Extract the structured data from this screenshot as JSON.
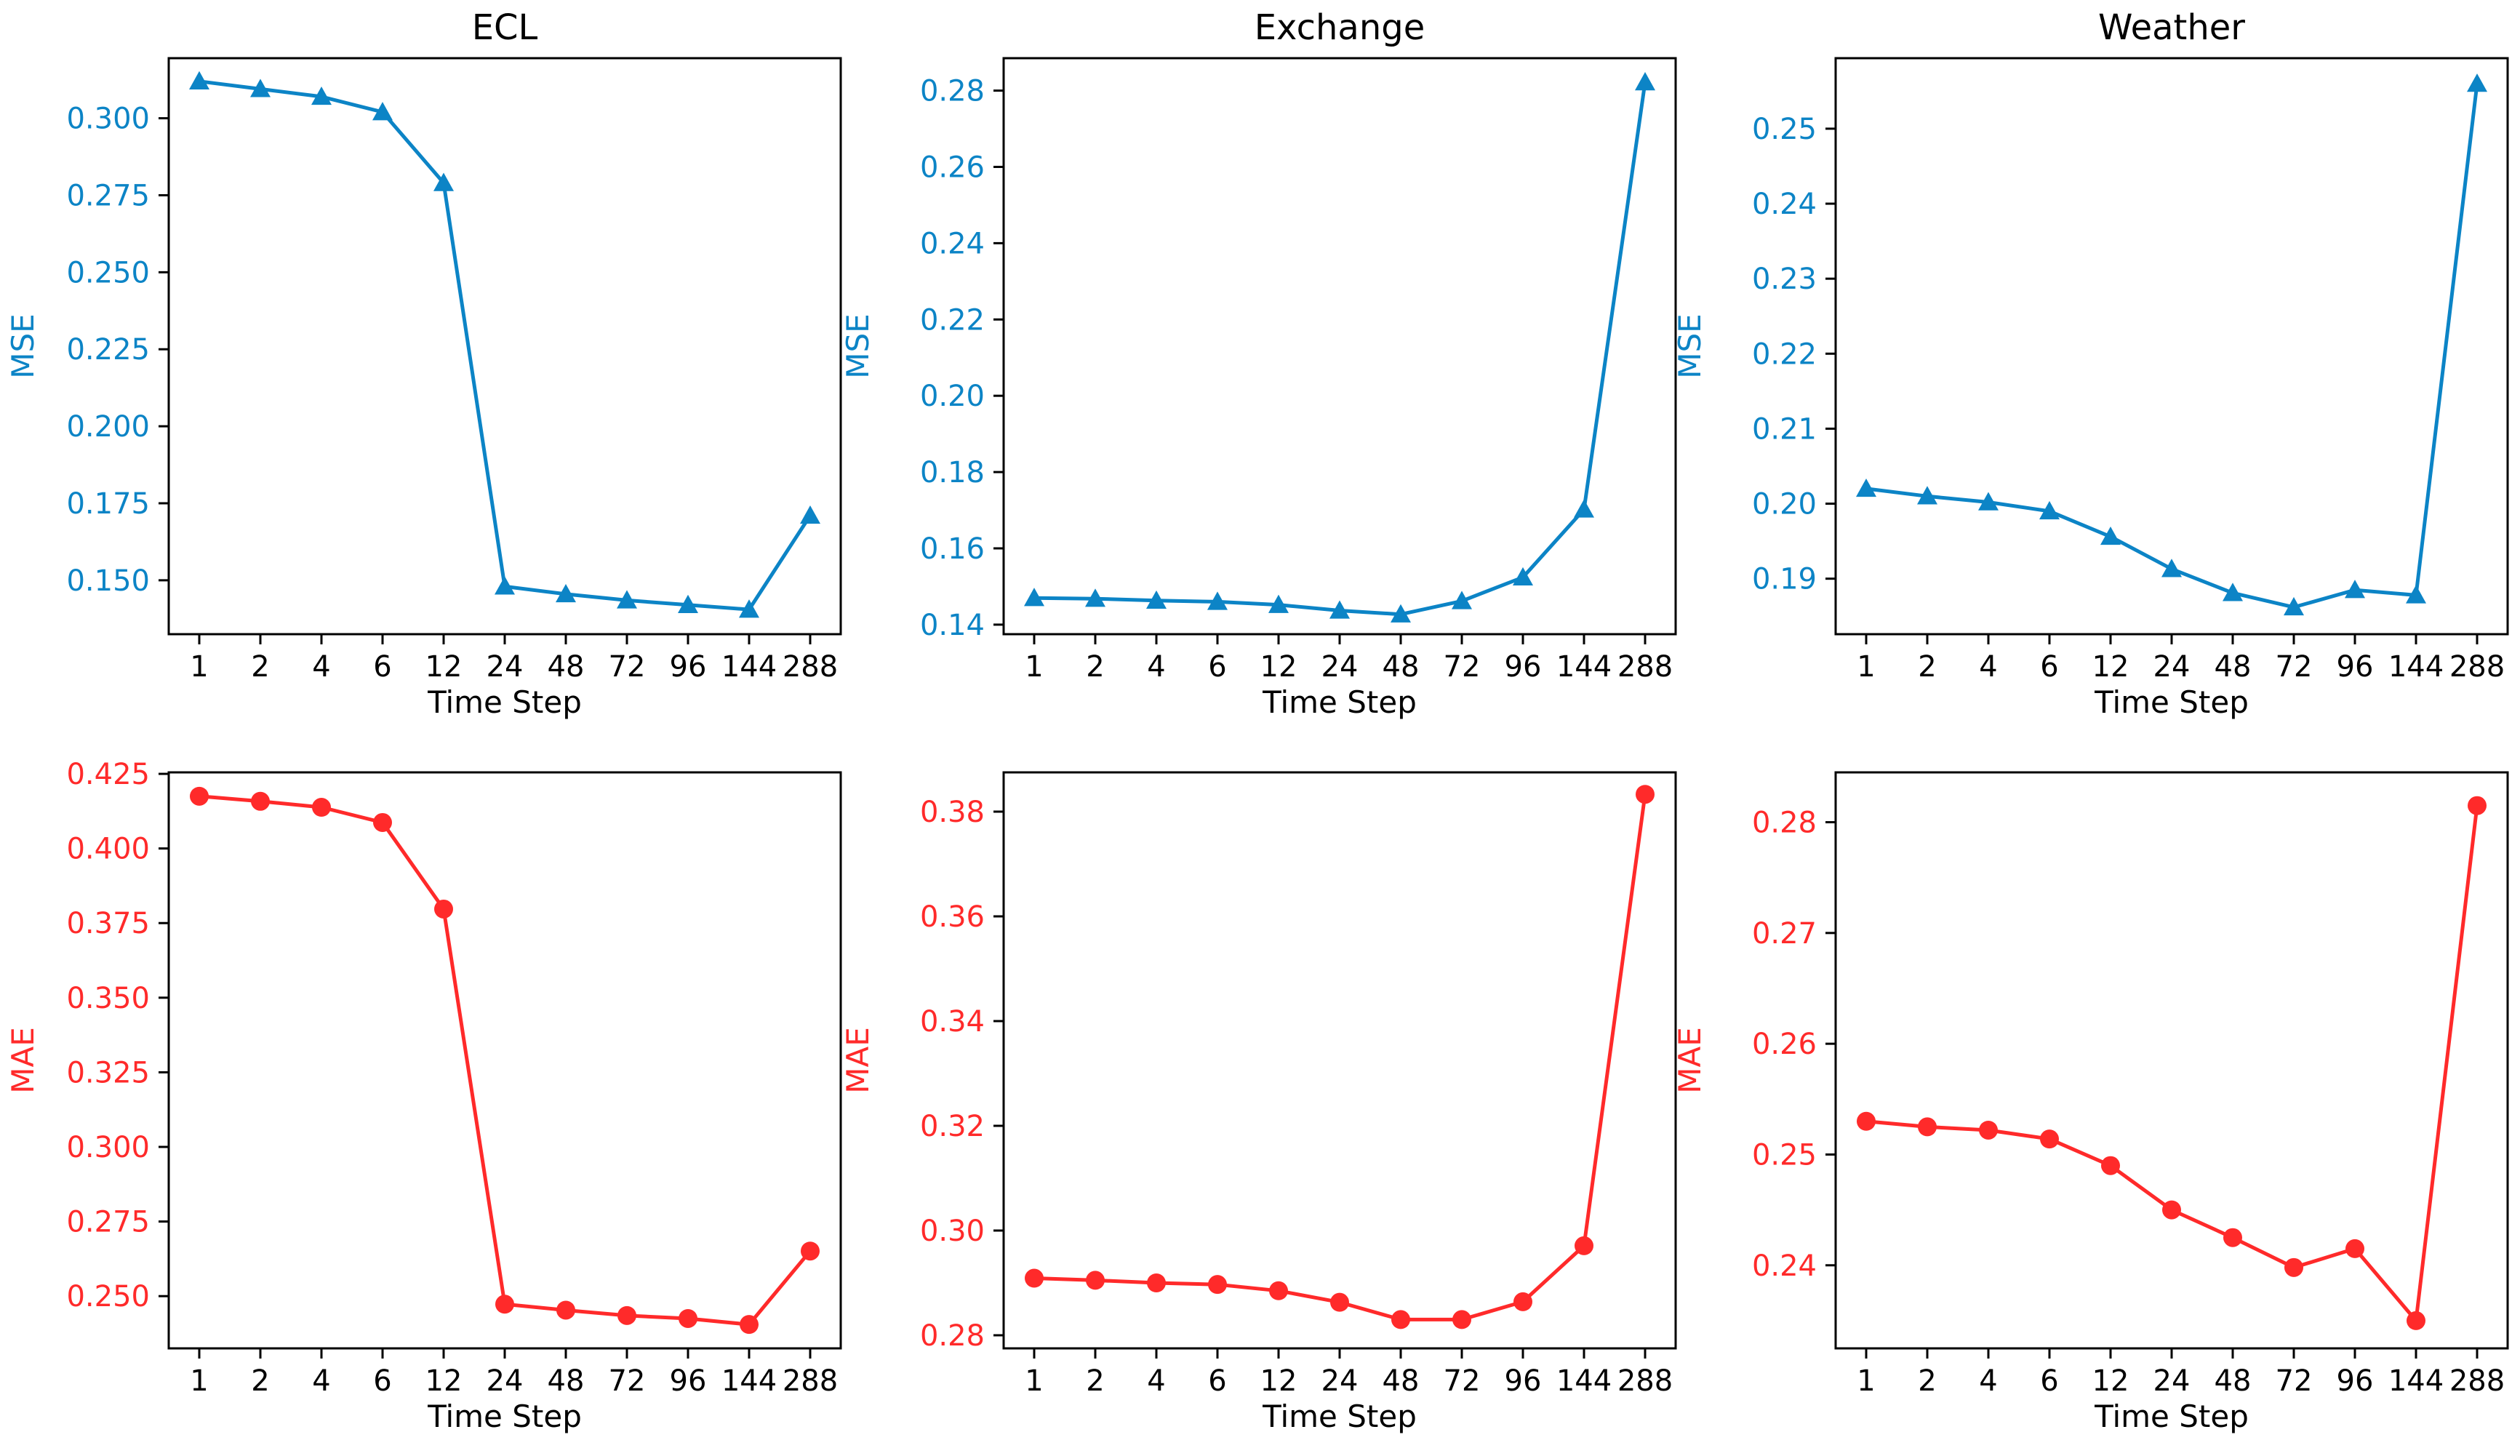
{
  "colors": {
    "mse": "#0c84c6",
    "mae": "#ff2a2a",
    "axis": "#000000"
  },
  "chart_data": [
    {
      "type": "line",
      "title": "ECL",
      "xlabel": "Time Step",
      "ylabel": "MSE",
      "marker": "triangle",
      "color_key": "mse",
      "categories": [
        "1",
        "2",
        "4",
        "6",
        "12",
        "24",
        "48",
        "72",
        "96",
        "144",
        "288"
      ],
      "values": [
        0.312,
        0.3095,
        0.307,
        0.302,
        0.279,
        0.148,
        0.1455,
        0.1435,
        0.142,
        0.1405,
        0.171
      ],
      "ylim": [
        0.1325,
        0.3195
      ],
      "yticks": [
        0.15,
        0.175,
        0.2,
        0.225,
        0.25,
        0.275,
        0.3
      ],
      "ytick_labels": [
        "0.150",
        "0.175",
        "0.200",
        "0.225",
        "0.250",
        "0.275",
        "0.300"
      ]
    },
    {
      "type": "line",
      "title": "Exchange",
      "xlabel": "Time Step",
      "ylabel": "MSE",
      "marker": "triangle",
      "color_key": "mse",
      "categories": [
        "1",
        "2",
        "4",
        "6",
        "12",
        "24",
        "48",
        "72",
        "96",
        "144",
        "288"
      ],
      "values": [
        0.147,
        0.1468,
        0.1463,
        0.146,
        0.1452,
        0.1437,
        0.1427,
        0.1462,
        0.1524,
        0.1702,
        0.2822
      ],
      "ylim": [
        0.1375,
        0.2885
      ],
      "yticks": [
        0.14,
        0.16,
        0.18,
        0.2,
        0.22,
        0.24,
        0.26,
        0.28
      ],
      "ytick_labels": [
        "0.14",
        "0.16",
        "0.18",
        "0.20",
        "0.22",
        "0.24",
        "0.26",
        "0.28"
      ]
    },
    {
      "type": "line",
      "title": "Weather",
      "xlabel": "Time Step",
      "ylabel": "MSE",
      "marker": "triangle",
      "color_key": "mse",
      "categories": [
        "1",
        "2",
        "4",
        "6",
        "12",
        "24",
        "48",
        "72",
        "96",
        "144",
        "288"
      ],
      "values": [
        0.202,
        0.201,
        0.2002,
        0.199,
        0.1956,
        0.1913,
        0.1881,
        0.1862,
        0.1885,
        0.1878,
        0.256
      ],
      "ylim": [
        0.1826,
        0.2594
      ],
      "yticks": [
        0.19,
        0.2,
        0.21,
        0.22,
        0.23,
        0.24,
        0.25
      ],
      "ytick_labels": [
        "0.19",
        "0.20",
        "0.21",
        "0.22",
        "0.23",
        "0.24",
        "0.25"
      ]
    },
    {
      "type": "line",
      "title": "",
      "xlabel": "Time Step",
      "ylabel": "MAE",
      "marker": "circle",
      "color_key": "mae",
      "categories": [
        "1",
        "2",
        "4",
        "6",
        "12",
        "24",
        "48",
        "72",
        "96",
        "144",
        "288"
      ],
      "values": [
        0.4175,
        0.4158,
        0.4138,
        0.4087,
        0.3797,
        0.2473,
        0.2453,
        0.2435,
        0.2425,
        0.2405,
        0.2651
      ],
      "ylim": [
        0.2325,
        0.4255
      ],
      "yticks": [
        0.25,
        0.275,
        0.3,
        0.325,
        0.35,
        0.375,
        0.4,
        0.425
      ],
      "ytick_labels": [
        "0.250",
        "0.275",
        "0.300",
        "0.325",
        "0.350",
        "0.375",
        "0.400",
        "0.425"
      ]
    },
    {
      "type": "line",
      "title": "",
      "xlabel": "Time Step",
      "ylabel": "MAE",
      "marker": "circle",
      "color_key": "mae",
      "categories": [
        "1",
        "2",
        "4",
        "6",
        "12",
        "24",
        "48",
        "72",
        "96",
        "144",
        "288"
      ],
      "values": [
        0.2909,
        0.2905,
        0.29,
        0.2897,
        0.2885,
        0.2863,
        0.283,
        0.283,
        0.2864,
        0.2971,
        0.3833
      ],
      "ylim": [
        0.2775,
        0.3875
      ],
      "yticks": [
        0.28,
        0.3,
        0.32,
        0.34,
        0.36,
        0.38
      ],
      "ytick_labels": [
        "0.28",
        "0.30",
        "0.32",
        "0.34",
        "0.36",
        "0.38"
      ]
    },
    {
      "type": "line",
      "title": "",
      "xlabel": "Time Step",
      "ylabel": "MAE",
      "marker": "circle",
      "color_key": "mae",
      "categories": [
        "1",
        "2",
        "4",
        "6",
        "12",
        "24",
        "48",
        "72",
        "96",
        "144",
        "288"
      ],
      "values": [
        0.253,
        0.2525,
        0.2522,
        0.2514,
        0.249,
        0.245,
        0.2425,
        0.2398,
        0.2415,
        0.235,
        0.2815
      ],
      "ylim": [
        0.2325,
        0.2845
      ],
      "yticks": [
        0.24,
        0.25,
        0.26,
        0.27,
        0.28
      ],
      "ytick_labels": [
        "0.24",
        "0.25",
        "0.26",
        "0.27",
        "0.28"
      ]
    }
  ]
}
